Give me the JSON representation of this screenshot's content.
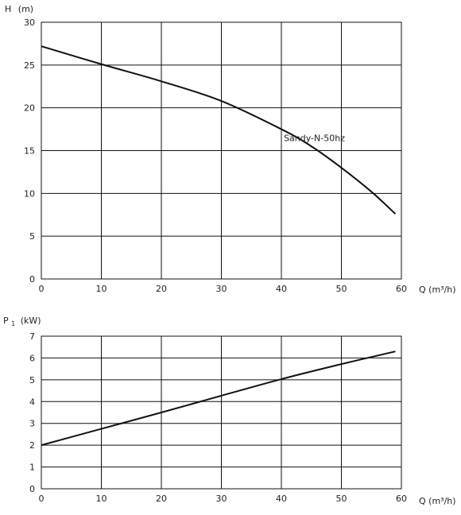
{
  "chart_data": [
    {
      "type": "line",
      "ylabel_main": "H",
      "ylabel_unit": "(m)",
      "xlabel": "Q (m³/h)",
      "xlim": [
        0,
        60
      ],
      "ylim": [
        0,
        30
      ],
      "xticks": [
        "0",
        "10",
        "20",
        "30",
        "40",
        "50",
        "60"
      ],
      "yticks": [
        "0",
        "5",
        "10",
        "15",
        "20",
        "25",
        "30"
      ],
      "grid": true,
      "series": [
        {
          "name": "Sandy-N-50hz",
          "x": [
            0,
            10,
            20,
            30,
            40,
            45,
            50,
            55,
            59
          ],
          "y": [
            27.2,
            25.1,
            23.1,
            20.8,
            17.5,
            15.5,
            13.0,
            10.2,
            7.6
          ]
        }
      ]
    },
    {
      "type": "line",
      "ylabel_main": "P",
      "ylabel_sub": "1",
      "ylabel_unit": "(kW)",
      "xlabel": "Q (m³/h)",
      "xlim": [
        0,
        60
      ],
      "ylim": [
        0,
        7
      ],
      "xticks": [
        "0",
        "10",
        "20",
        "30",
        "40",
        "50",
        "60"
      ],
      "yticks": [
        "0",
        "1",
        "2",
        "3",
        "4",
        "5",
        "6",
        "7"
      ],
      "grid": true,
      "series": [
        {
          "x": [
            0,
            10,
            20,
            30,
            40,
            50,
            59
          ],
          "y": [
            2.0,
            2.75,
            3.5,
            4.27,
            5.03,
            5.72,
            6.3
          ]
        }
      ]
    }
  ]
}
